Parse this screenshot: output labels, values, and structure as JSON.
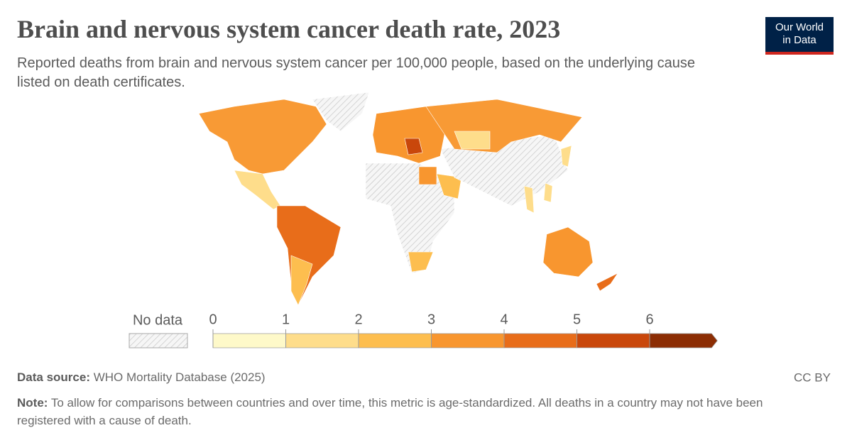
{
  "header": {
    "title": "Brain and nervous system cancer death rate, 2023",
    "subtitle": "Reported deaths from brain and nervous system cancer per 100,000 people, based on the underlying cause listed on death certificates.",
    "logo_line1": "Our World",
    "logo_line2": "in Data"
  },
  "legend": {
    "no_data_label": "No data",
    "ticks": [
      0,
      1,
      2,
      3,
      4,
      5,
      6
    ],
    "colors": [
      "#fef9c9",
      "#fedd8b",
      "#fdbe4f",
      "#f8962f",
      "#e86d1a",
      "#c9470b",
      "#8c2d04"
    ]
  },
  "footer": {
    "source_label": "Data source:",
    "source": "WHO Mortality Database (2025)",
    "license": "CC BY",
    "note_label": "Note:",
    "note": "To allow for comparisons between countries and over time, this metric is age-standardized. All deaths in a country may not have been registered with a cause of death."
  }
}
